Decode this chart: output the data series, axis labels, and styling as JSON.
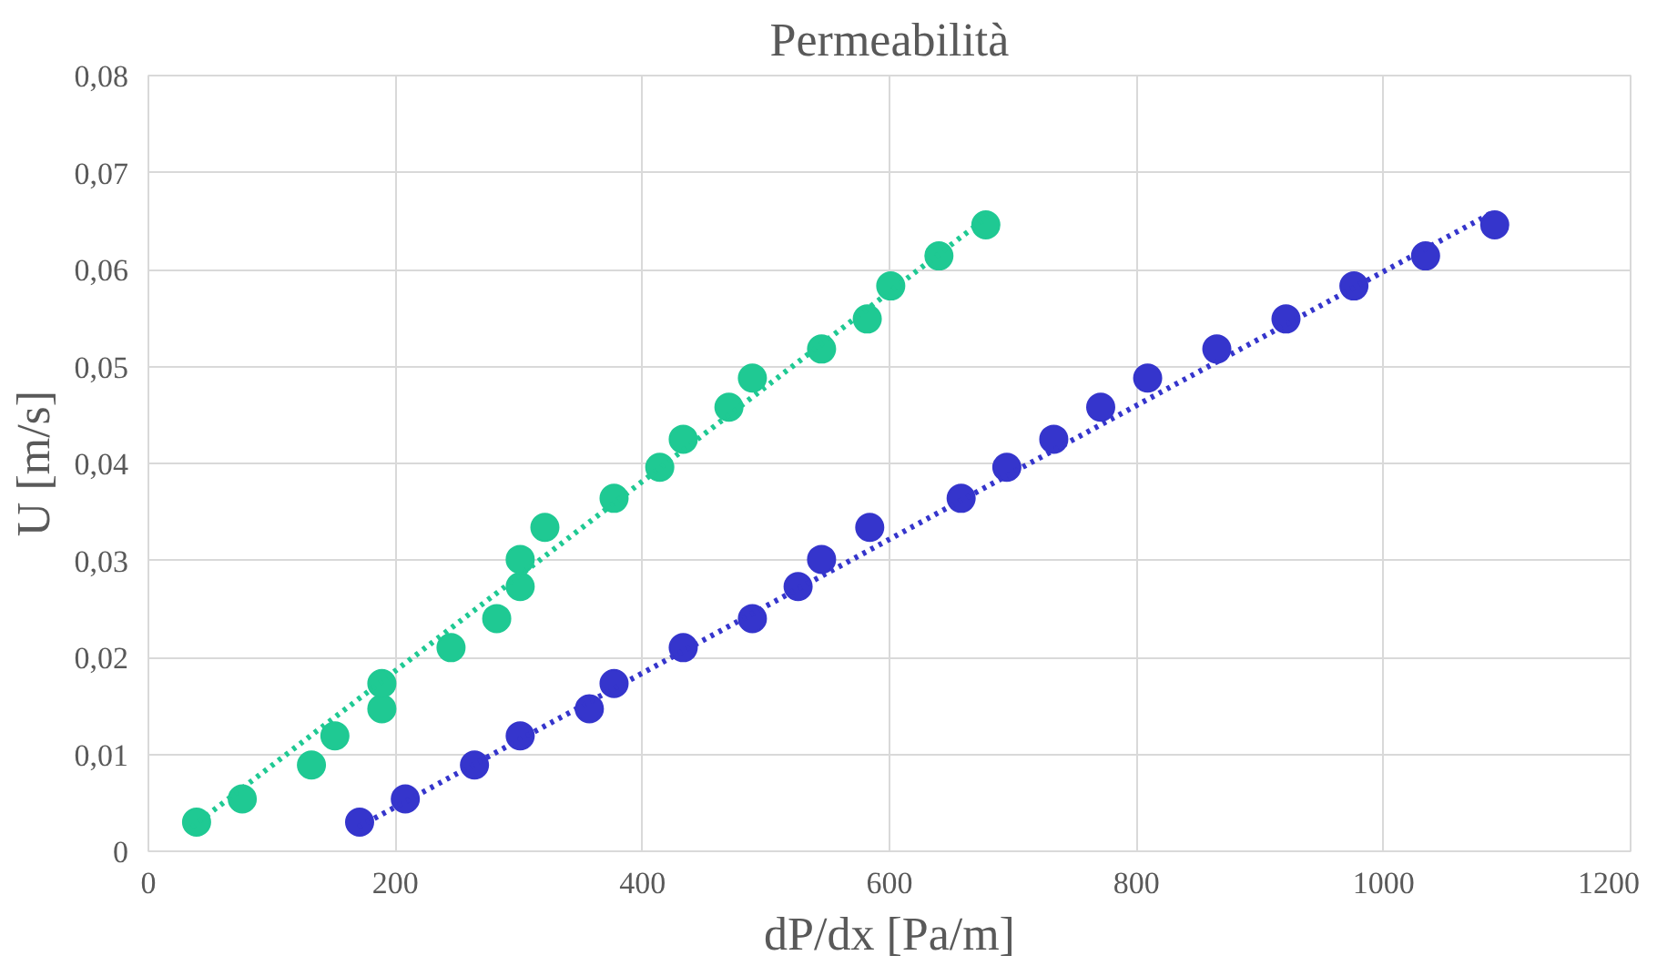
{
  "chart_data": {
    "type": "scatter",
    "title": "Permeabilità",
    "xlabel": "dP/dx [Pa/m]",
    "ylabel": "U [m/s]",
    "xlim": [
      0,
      1200
    ],
    "xticks": [
      0,
      200,
      400,
      600,
      800,
      1000,
      1200
    ],
    "ylim": [
      0,
      0.08
    ],
    "yticks": [
      0,
      {
        "value": 0.01,
        "label": "0,01"
      },
      {
        "value": 0.02,
        "label": "0,02"
      },
      {
        "value": 0.03,
        "label": "0,03"
      },
      {
        "value": 0.04,
        "label": "0,04"
      },
      {
        "value": 0.05,
        "label": "0,05"
      },
      {
        "value": 0.06,
        "label": "0,06"
      },
      {
        "value": 0.07,
        "label": "0,07"
      },
      {
        "value": 0.08,
        "label": "0,08"
      }
    ],
    "grid": true,
    "marker": "circle",
    "series": [
      {
        "color": "#1fc993",
        "x": [
          39,
          76,
          132,
          151,
          189,
          189,
          245,
          282,
          301,
          301,
          321,
          377,
          414,
          433,
          470,
          489,
          545,
          582,
          601,
          640,
          678
        ],
        "values": [
          0.003,
          0.0054,
          0.0089,
          0.0119,
          0.0147,
          0.0173,
          0.021,
          0.024,
          0.0273,
          0.0301,
          0.0334,
          0.0364,
          0.0396,
          0.0425,
          0.0458,
          0.0488,
          0.0518,
          0.0549,
          0.0583,
          0.0614,
          0.0646
        ]
      },
      {
        "color": "#3535cc",
        "x": [
          171,
          208,
          264,
          301,
          357,
          377,
          433,
          489,
          526,
          545,
          584,
          658,
          695,
          733,
          771,
          809,
          865,
          921,
          976,
          1034,
          1090
        ],
        "values": [
          0.003,
          0.0054,
          0.0089,
          0.0119,
          0.0147,
          0.0173,
          0.021,
          0.024,
          0.0273,
          0.0301,
          0.0334,
          0.0364,
          0.0396,
          0.0425,
          0.0458,
          0.0488,
          0.0518,
          0.0549,
          0.0583,
          0.0614,
          0.0646
        ]
      },
      {
        "type": "line",
        "line_style": "dotted",
        "marker": "none",
        "color": "#1fc993",
        "x": [
          35,
          680
        ],
        "values": [
          0.0025,
          0.0655
        ]
      },
      {
        "type": "line",
        "line_style": "dotted",
        "marker": "none",
        "color": "#3535cc",
        "x": [
          170,
          1090
        ],
        "values": [
          0.0025,
          0.066
        ]
      }
    ]
  }
}
